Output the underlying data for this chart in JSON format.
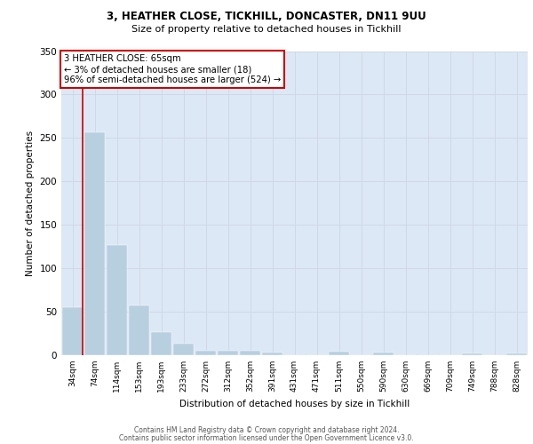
{
  "title_line1": "3, HEATHER CLOSE, TICKHILL, DONCASTER, DN11 9UU",
  "title_line2": "Size of property relative to detached houses in Tickhill",
  "xlabel": "Distribution of detached houses by size in Tickhill",
  "ylabel": "Number of detached properties",
  "categories": [
    "34sqm",
    "74sqm",
    "114sqm",
    "153sqm",
    "193sqm",
    "233sqm",
    "272sqm",
    "312sqm",
    "352sqm",
    "391sqm",
    "431sqm",
    "471sqm",
    "511sqm",
    "550sqm",
    "590sqm",
    "630sqm",
    "669sqm",
    "709sqm",
    "749sqm",
    "788sqm",
    "828sqm"
  ],
  "values": [
    55,
    257,
    127,
    57,
    27,
    13,
    5,
    5,
    5,
    3,
    0,
    0,
    4,
    0,
    3,
    0,
    0,
    0,
    2,
    0,
    2
  ],
  "bar_color": "#b8cfe0",
  "grid_color": "#d0d8e8",
  "background_color": "#dce8f5",
  "annotation_text": "3 HEATHER CLOSE: 65sqm\n← 3% of detached houses are smaller (18)\n96% of semi-detached houses are larger (524) →",
  "annotation_box_edgecolor": "#cc0000",
  "marker_line_color": "#cc0000",
  "ylim": [
    0,
    350
  ],
  "yticks": [
    0,
    50,
    100,
    150,
    200,
    250,
    300,
    350
  ],
  "footer_line1": "Contains HM Land Registry data © Crown copyright and database right 2024.",
  "footer_line2": "Contains public sector information licensed under the Open Government Licence v3.0."
}
